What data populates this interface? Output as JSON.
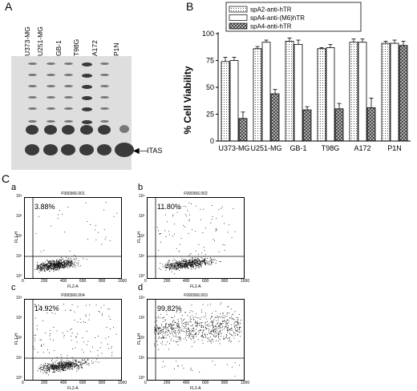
{
  "panel_a": {
    "letter": "A",
    "lanes": [
      "U373-MG",
      "U251-MG",
      "GB-1",
      "T98G",
      "A172",
      "P1N"
    ],
    "itas_label": "ITAS"
  },
  "panel_b": {
    "letter": "B",
    "ylabel": "% Cell Viability"
  },
  "chart_data": {
    "type": "bar",
    "categories": [
      "U373-MG",
      "U251-MG",
      "GB-1",
      "T98G",
      "A172",
      "P1N"
    ],
    "series": [
      {
        "name": "spA2-anti-hTR",
        "values": [
          74,
          86,
          93,
          86,
          92,
          91
        ],
        "errors": [
          4,
          2,
          3,
          1,
          3,
          2
        ],
        "pattern": "dotted"
      },
      {
        "name": "spA4-anti-(M6)hTR",
        "values": [
          75,
          92,
          90,
          87,
          92,
          91
        ],
        "errors": [
          3,
          2,
          4,
          3,
          3,
          3
        ],
        "pattern": "white"
      },
      {
        "name": "spA4-anti-hTR",
        "values": [
          21,
          44,
          29,
          30,
          31,
          89
        ],
        "errors": [
          6,
          4,
          3,
          5,
          9,
          4
        ],
        "pattern": "crosshatch"
      }
    ],
    "ylabel": "% Cell Viability",
    "ylim": [
      0,
      100
    ],
    "yticks": [
      0,
      25,
      50,
      75,
      100
    ],
    "legend": "top"
  },
  "panel_c": {
    "letter": "C",
    "plots": [
      {
        "letter": "a",
        "title": "F990366.001",
        "percent": "3.88%"
      },
      {
        "letter": "b",
        "title": "F990366.002",
        "percent": "11.80%"
      },
      {
        "letter": "c",
        "title": "F990366.004",
        "percent": "14.92%"
      },
      {
        "letter": "d",
        "title": "F990366.003",
        "percent": "99.82%"
      }
    ],
    "xlabel": "FL2-A",
    "ylabel": "FL1-H",
    "xticks": [
      "0",
      "200",
      "400",
      "600",
      "800",
      "1000"
    ],
    "yticks": [
      "10⁰",
      "10¹",
      "10²",
      "10³",
      "10⁴"
    ]
  }
}
